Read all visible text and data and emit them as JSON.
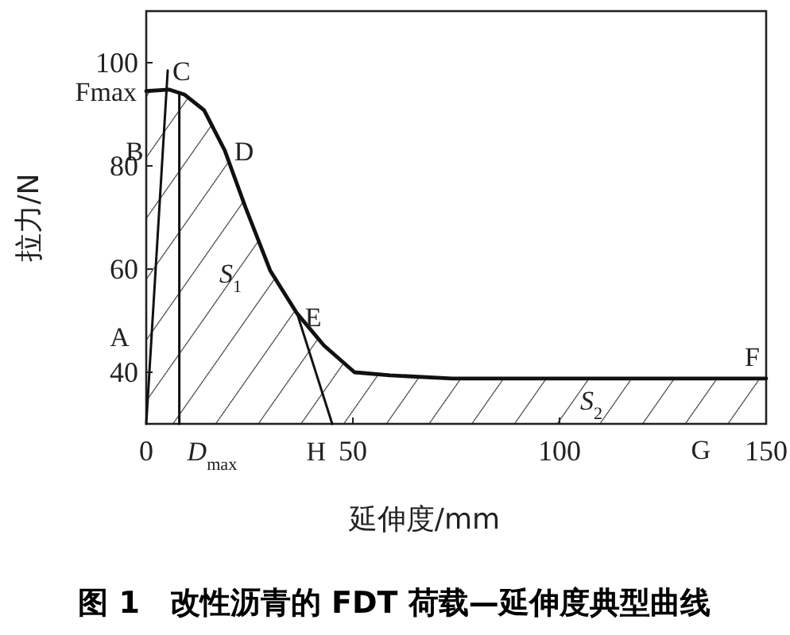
{
  "chart_data": {
    "type": "line",
    "title": "图 1　改性沥青的 FDT 荷载—延伸度典型曲线",
    "xlabel": "延伸度/mm",
    "ylabel": "拉力/N",
    "xlim": [
      0,
      150
    ],
    "ylim": [
      30,
      110
    ],
    "xticks": [
      0,
      50,
      100,
      150
    ],
    "yticks": [
      40,
      60,
      80,
      100
    ],
    "grid": false,
    "marker": "none",
    "line_style": "solid",
    "series": [
      {
        "type": "area",
        "color": "#111111",
        "x": [
          0,
          5.5,
          9.3,
          14,
          19,
          24,
          30,
          36.5,
          43,
          50.4,
          59,
          74,
          102.6,
          150
        ],
        "values": [
          94.5,
          94.8,
          93.8,
          90.8,
          83,
          72,
          59.7,
          51.4,
          45.2,
          40,
          39.4,
          38.8,
          38.8,
          38.8
        ]
      },
      {
        "color": "#111111",
        "x": [
          0,
          5.2
        ],
        "values": [
          30,
          98.5
        ]
      },
      {
        "color": "#111111",
        "x": [
          8,
          8
        ],
        "values": [
          30,
          94
        ]
      },
      {
        "color": "#111111",
        "x": [
          36.5,
          45
        ],
        "values": [
          51.4,
          30
        ]
      }
    ],
    "annotations": [
      {
        "text": "A",
        "x": 1.3,
        "y": 47
      },
      {
        "text": "B",
        "x": 4,
        "y": 83
      },
      {
        "text": "C",
        "x": 5.2,
        "y": 98.5
      },
      {
        "text": "D",
        "x": 19,
        "y": 83
      },
      {
        "text": "E",
        "x": 36.5,
        "y": 51.4
      },
      {
        "text": "F",
        "x": 150,
        "y": 38.8
      },
      "G",
      {
        "text": "H",
        "x": 45,
        "y": 30
      },
      {
        "text": "Fmax",
        "x": 0,
        "y": 94.5
      },
      {
        "text": "*D*$_{max}$",
        "x": 8,
        "y": 30
      },
      "*S*$_{1}$",
      "*S*$_{2}$"
    ]
  }
}
